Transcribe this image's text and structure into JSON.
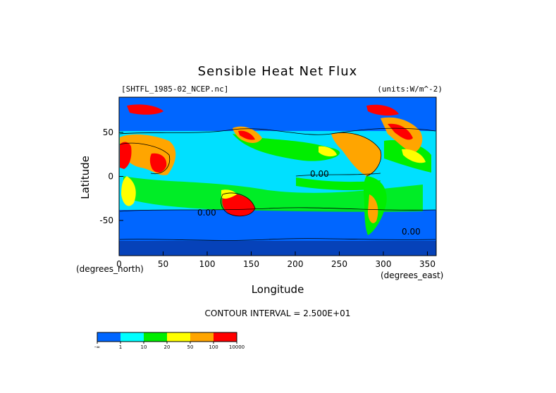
{
  "chart_data": {
    "type": "heatmap",
    "title": "Sensible Heat Net Flux",
    "file_label": "[SHTFL_1985-02_NCEP.nc]",
    "units_label": "(units:W/m^-2)",
    "xlabel": "Longitude",
    "ylabel": "Latitude",
    "x_unit_label": "(degrees_east)",
    "y_unit_label": "(degrees_north)",
    "xlim": [
      0,
      360
    ],
    "ylim": [
      -90,
      90
    ],
    "x_ticks": [
      "0",
      "50",
      "100",
      "150",
      "200",
      "250",
      "300",
      "350"
    ],
    "y_ticks": [
      "50",
      "0",
      "-50"
    ],
    "contour_interval_text": "CONTOUR INTERVAL = 2.500E+01",
    "contour_labels": [
      "0.00",
      "0.00",
      "0.00"
    ],
    "colorbar": {
      "bounds": [
        "-∞",
        "1",
        "10",
        "20",
        "50",
        "100",
        "10000"
      ],
      "colors": [
        "#0066ff",
        "#00ffff",
        "#00ee00",
        "#ffff00",
        "#ffa500",
        "#ff0000"
      ]
    }
  }
}
